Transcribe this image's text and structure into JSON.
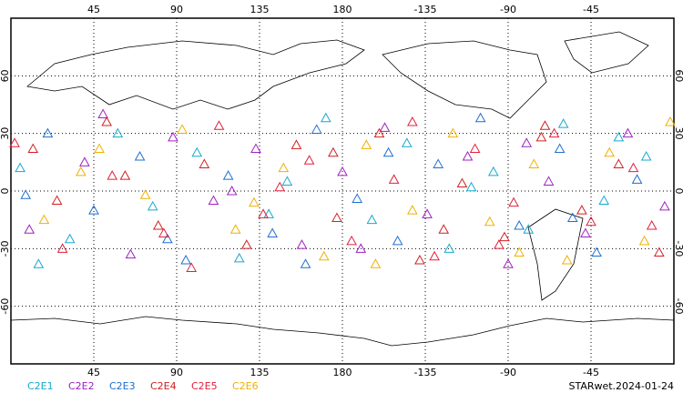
{
  "chart_data": {
    "type": "scatter",
    "xlim": [
      0,
      360
    ],
    "ylim": [
      -90,
      90
    ],
    "xticks": [
      45,
      90,
      135,
      180,
      {
        "value": 225,
        "label": "-135"
      },
      {
        "value": 270,
        "label": "-90"
      },
      {
        "value": 315,
        "label": "-45"
      }
    ],
    "yticks": [
      -60,
      -30,
      0,
      30,
      60
    ],
    "grid": true,
    "footer": "STARwet.2024-01-24",
    "series": [
      {
        "name": "C2E1",
        "color": "#17a9d0",
        "x": [
          5,
          32,
          58,
          77,
          101,
          124,
          150,
          171,
          196,
          215,
          238,
          262,
          281,
          300,
          322,
          345,
          15,
          140,
          250,
          330
        ],
        "y": [
          12,
          -25,
          30,
          -8,
          20,
          -35,
          5,
          38,
          -15,
          25,
          -30,
          10,
          -20,
          35,
          -5,
          18,
          -38,
          -12,
          2,
          28
        ]
      },
      {
        "name": "C2E2",
        "color": "#a020c0",
        "x": [
          10,
          40,
          65,
          88,
          110,
          133,
          158,
          180,
          203,
          226,
          248,
          270,
          292,
          312,
          335,
          355,
          50,
          190,
          280,
          120
        ],
        "y": [
          -20,
          15,
          -33,
          28,
          -5,
          22,
          -28,
          10,
          33,
          -12,
          18,
          -38,
          5,
          -22,
          30,
          -8,
          40,
          -30,
          25,
          0
        ]
      },
      {
        "name": "C2E3",
        "color": "#1e6fd0",
        "x": [
          20,
          45,
          70,
          95,
          118,
          142,
          166,
          188,
          210,
          232,
          255,
          276,
          298,
          318,
          340,
          8,
          85,
          205,
          305,
          160
        ],
        "y": [
          30,
          -10,
          18,
          -36,
          8,
          -22,
          32,
          -4,
          -26,
          14,
          38,
          -18,
          22,
          -32,
          6,
          -2,
          -25,
          20,
          -14,
          -38
        ]
      },
      {
        "name": "C2E4",
        "color": "#d02020",
        "x": [
          25,
          52,
          80,
          105,
          128,
          155,
          177,
          200,
          222,
          245,
          268,
          288,
          310,
          330,
          352,
          62,
          175,
          235,
          290,
          12
        ],
        "y": [
          -5,
          36,
          -18,
          14,
          -28,
          24,
          -14,
          30,
          -36,
          4,
          -24,
          28,
          -10,
          14,
          -32,
          8,
          20,
          -20,
          34,
          22
        ]
      },
      {
        "name": "C2E5",
        "color": "#e0203c",
        "x": [
          2,
          28,
          55,
          83,
          113,
          137,
          162,
          185,
          208,
          230,
          252,
          273,
          295,
          315,
          338,
          98,
          146,
          218,
          265,
          348
        ],
        "y": [
          25,
          -30,
          8,
          -22,
          34,
          -12,
          16,
          -26,
          6,
          -34,
          22,
          -6,
          30,
          -16,
          12,
          -40,
          2,
          36,
          -28,
          -18
        ]
      },
      {
        "name": "C2E6",
        "color": "#f0b000",
        "x": [
          18,
          48,
          73,
          93,
          122,
          148,
          170,
          193,
          218,
          240,
          260,
          284,
          302,
          325,
          344,
          38,
          132,
          198,
          276,
          358
        ],
        "y": [
          -15,
          22,
          -2,
          32,
          -20,
          12,
          -34,
          24,
          -10,
          30,
          -16,
          14,
          -36,
          20,
          -26,
          10,
          -6,
          -38,
          -32,
          36
        ]
      }
    ]
  }
}
